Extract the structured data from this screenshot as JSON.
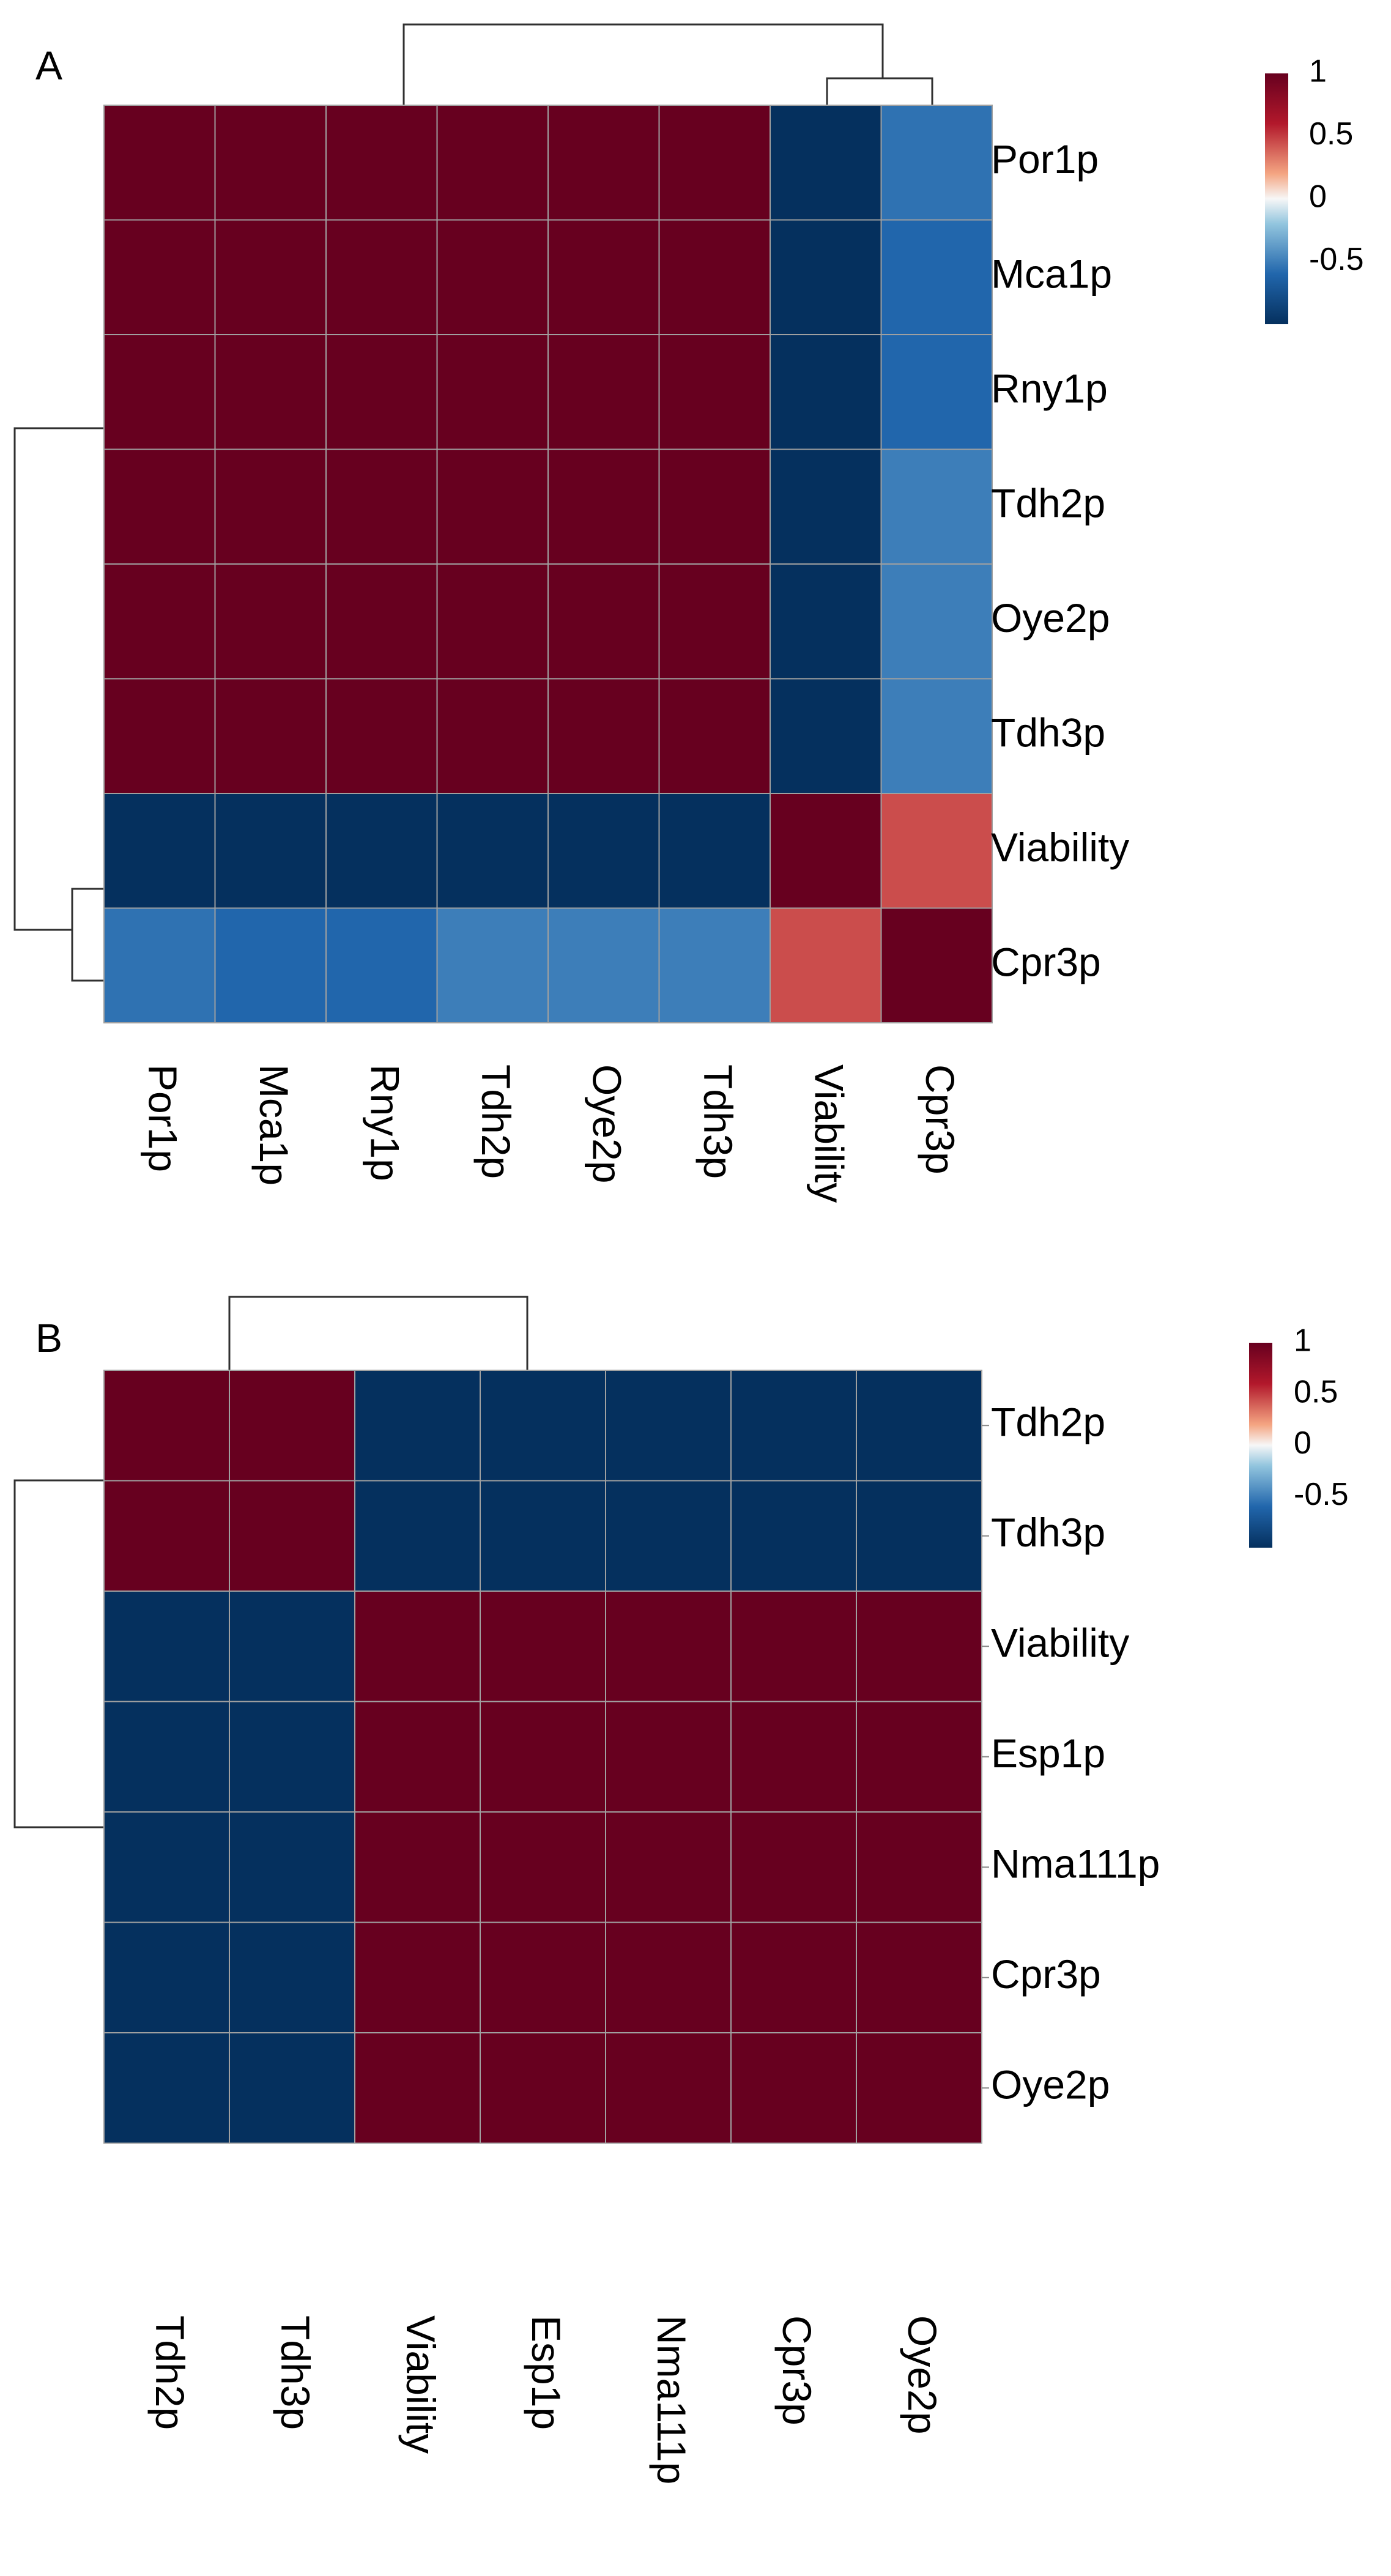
{
  "colors": {
    "strong_negative": "#05305e",
    "negative_light": "#6aaed6",
    "neutral": "#f7f7f7",
    "positive_light": "#f4a582",
    "strong_positive": "#67001f",
    "cell_border": "#a0a0a0",
    "dendrogram": "#303030"
  },
  "chart_data": [
    {
      "type": "heatmap",
      "panel_label": "A",
      "rows": [
        "Por1p",
        "Mca1p",
        "Rny1p",
        "Tdh2p",
        "Oye2p",
        "Tdh3p",
        "Viability",
        "Cpr3p"
      ],
      "columns": [
        "Por1p",
        "Mca1p",
        "Rny1p",
        "Tdh2p",
        "Oye2p",
        "Tdh3p",
        "Viability",
        "Cpr3p"
      ],
      "values": [
        [
          1,
          1,
          1,
          1,
          1,
          1,
          -1,
          -0.55
        ],
        [
          1,
          1,
          1,
          1,
          1,
          1,
          -1,
          -0.6
        ],
        [
          1,
          1,
          1,
          1,
          1,
          1,
          -1,
          -0.6
        ],
        [
          1,
          1,
          1,
          1,
          1,
          1,
          -1,
          -0.5
        ],
        [
          1,
          1,
          1,
          1,
          1,
          1,
          -1,
          -0.5
        ],
        [
          1,
          1,
          1,
          1,
          1,
          1,
          -1,
          -0.5
        ],
        [
          -1,
          -1,
          -1,
          -1,
          -1,
          -1,
          1,
          0.45
        ],
        [
          -0.55,
          -0.6,
          -0.6,
          -0.5,
          -0.5,
          -0.5,
          0.45,
          1
        ]
      ],
      "value_range": [
        -1,
        1
      ],
      "legend": {
        "ticks": [
          "1",
          "0.5",
          "0",
          "-0.5"
        ],
        "tick_values": [
          1,
          0.5,
          0,
          -0.5
        ],
        "placement": "top-right"
      }
    },
    {
      "type": "heatmap",
      "panel_label": "B",
      "rows": [
        "Tdh2p",
        "Tdh3p",
        "Viability",
        "Esp1p",
        "Nma111p",
        "Cpr3p",
        "Oye2p"
      ],
      "columns": [
        "Tdh2p",
        "Tdh3p",
        "Viability",
        "Esp1p",
        "Nma111p",
        "Cpr3p",
        "Oye2p"
      ],
      "values": [
        [
          1,
          1,
          -1,
          -1,
          -1,
          -1,
          -1
        ],
        [
          1,
          1,
          -1,
          -1,
          -1,
          -1,
          -1
        ],
        [
          -1,
          -1,
          1,
          1,
          1,
          1,
          1
        ],
        [
          -1,
          -1,
          1,
          1,
          1,
          1,
          1
        ],
        [
          -1,
          -1,
          1,
          1,
          1,
          1,
          1
        ],
        [
          -1,
          -1,
          1,
          1,
          1,
          1,
          1
        ],
        [
          -1,
          -1,
          1,
          1,
          1,
          1,
          1
        ]
      ],
      "value_range": [
        -1,
        1
      ],
      "legend": {
        "ticks": [
          "1",
          "0.5",
          "0",
          "-0.5"
        ],
        "tick_values": [
          1,
          0.5,
          0,
          -0.5
        ],
        "placement": "top-right"
      }
    }
  ]
}
